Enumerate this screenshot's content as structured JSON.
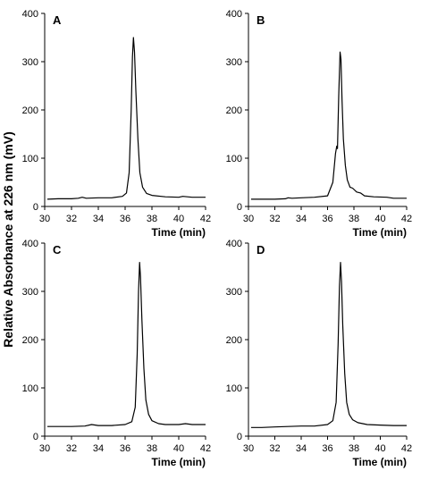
{
  "figure": {
    "ylabel": "Relative Absorbance at 226 nm (mV)"
  },
  "chart_data": [
    {
      "type": "line",
      "panel_label": "A",
      "xlabel": "Time (min)",
      "xlim": [
        30,
        42
      ],
      "ylim": [
        0,
        400
      ],
      "xticks": [
        30,
        32,
        34,
        36,
        38,
        40,
        42
      ],
      "yticks": [
        0,
        100,
        200,
        300,
        400
      ],
      "grid": false,
      "series": [
        {
          "x": [
            30.2,
            31,
            32,
            32.5,
            32.8,
            33.1,
            34,
            35,
            35.8,
            36.1,
            36.3,
            36.45,
            36.55,
            36.62,
            36.7,
            36.8,
            36.95,
            37.1,
            37.3,
            37.6,
            38,
            39,
            40,
            40.3,
            41,
            42
          ],
          "y": [
            15,
            16,
            16,
            17,
            19,
            17,
            18,
            18,
            21,
            28,
            70,
            200,
            310,
            350,
            320,
            240,
            140,
            70,
            40,
            27,
            23,
            20,
            19,
            21,
            19,
            19
          ]
        }
      ]
    },
    {
      "type": "line",
      "panel_label": "B",
      "xlabel": "Time (min)",
      "xlim": [
        30,
        42
      ],
      "ylim": [
        0,
        400
      ],
      "xticks": [
        30,
        32,
        34,
        36,
        38,
        40,
        42
      ],
      "yticks": [
        0,
        100,
        200,
        300,
        400
      ],
      "grid": false,
      "series": [
        {
          "x": [
            30.2,
            31,
            32,
            32.8,
            33,
            33.3,
            34,
            35,
            36,
            36.4,
            36.6,
            36.7,
            36.75,
            36.85,
            36.95,
            37.02,
            37.1,
            37.2,
            37.35,
            37.5,
            37.7,
            37.9,
            38.2,
            38.5,
            38.8,
            39.5,
            40.5,
            41,
            42
          ],
          "y": [
            15,
            15,
            15,
            16,
            18,
            17,
            18,
            19,
            22,
            50,
            110,
            125,
            120,
            230,
            320,
            305,
            220,
            140,
            85,
            55,
            40,
            38,
            30,
            28,
            22,
            20,
            19,
            17,
            17
          ]
        }
      ]
    },
    {
      "type": "line",
      "panel_label": "C",
      "xlabel": "Time (min)",
      "xlim": [
        30,
        42
      ],
      "ylim": [
        0,
        400
      ],
      "xticks": [
        30,
        32,
        34,
        36,
        38,
        40,
        42
      ],
      "yticks": [
        0,
        100,
        200,
        300,
        400
      ],
      "grid": false,
      "series": [
        {
          "x": [
            30.2,
            31,
            32,
            33,
            33.5,
            34,
            35,
            36,
            36.5,
            36.75,
            36.9,
            37.0,
            37.08,
            37.15,
            37.25,
            37.4,
            37.55,
            37.75,
            38,
            38.5,
            39,
            40,
            40.5,
            41,
            42
          ],
          "y": [
            20,
            20,
            20,
            21,
            24,
            22,
            22,
            24,
            30,
            60,
            170,
            300,
            360,
            330,
            240,
            140,
            75,
            45,
            32,
            26,
            24,
            24,
            26,
            24,
            24
          ]
        }
      ]
    },
    {
      "type": "line",
      "panel_label": "D",
      "xlabel": "Time (min)",
      "xlim": [
        30,
        42
      ],
      "ylim": [
        0,
        400
      ],
      "xticks": [
        30,
        32,
        34,
        36,
        38,
        40,
        42
      ],
      "yticks": [
        0,
        100,
        200,
        300,
        400
      ],
      "grid": false,
      "series": [
        {
          "x": [
            30.2,
            31,
            32,
            33,
            34,
            35,
            36,
            36.4,
            36.65,
            36.8,
            36.9,
            36.98,
            37.06,
            37.15,
            37.3,
            37.45,
            37.65,
            37.9,
            38.3,
            39,
            40,
            41,
            42
          ],
          "y": [
            18,
            18,
            19,
            20,
            21,
            21,
            24,
            32,
            70,
            190,
            310,
            360,
            320,
            230,
            130,
            70,
            45,
            34,
            28,
            24,
            23,
            22,
            22
          ]
        }
      ]
    }
  ]
}
